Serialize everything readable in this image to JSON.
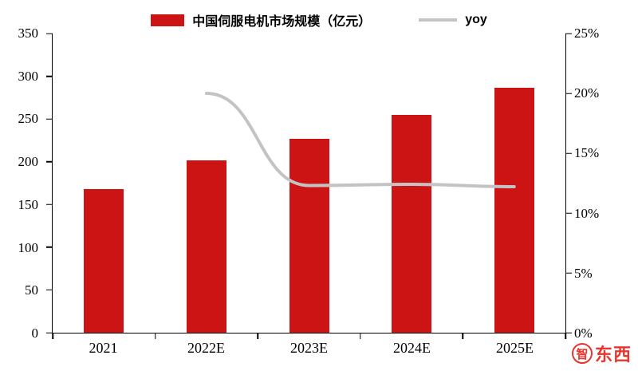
{
  "legend": {
    "bars_label": "中国伺服电机市场规模（亿元）",
    "line_label": "yoy"
  },
  "colors": {
    "bar": "#CC1414",
    "line": "#C3C3C3",
    "axis": "#000000",
    "watermark": "#E8241E"
  },
  "watermark": {
    "circle_char": "智",
    "text": "东西"
  },
  "chart_data": {
    "type": "bar",
    "title": "",
    "legend_position": "top",
    "grid": false,
    "categories": [
      "2021",
      "2022E",
      "2023E",
      "2024E",
      "2025E"
    ],
    "series": [
      {
        "name": "中国伺服电机市场规模（亿元）",
        "type": "bar",
        "axis": "left",
        "values": [
          168,
          202,
          227,
          255,
          287
        ]
      },
      {
        "name": "yoy",
        "type": "line",
        "axis": "right",
        "unit": "%",
        "values": [
          null,
          20,
          12.3,
          12.4,
          12.2
        ]
      }
    ],
    "left_axis": {
      "min": 0,
      "max": 350,
      "ticks": [
        0,
        50,
        100,
        150,
        200,
        250,
        300,
        350
      ]
    },
    "right_axis": {
      "min": 0,
      "max": 25,
      "tick_labels": [
        "0%",
        "5%",
        "10%",
        "15%",
        "20%",
        "25%"
      ],
      "tick_values": [
        0,
        5,
        10,
        15,
        20,
        25
      ]
    }
  }
}
